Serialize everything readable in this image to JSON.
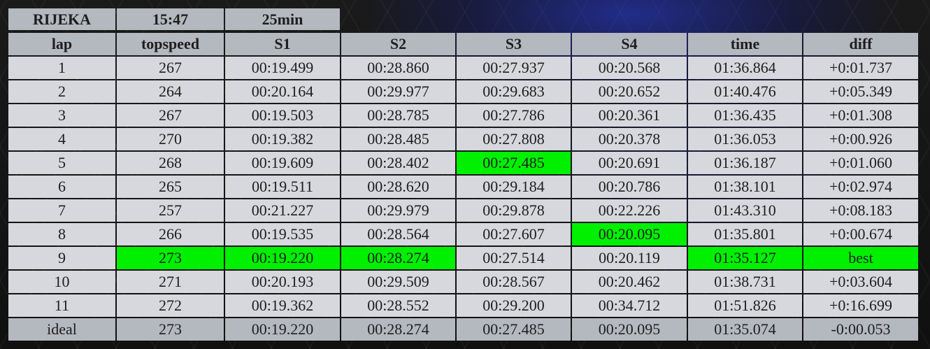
{
  "session": {
    "track": "RIJEKA",
    "time": "15:47",
    "duration": "25min"
  },
  "columns": [
    "lap",
    "topspeed",
    "S1",
    "S2",
    "S3",
    "S4",
    "time",
    "diff"
  ],
  "rows": [
    {
      "values": [
        "1",
        "267",
        "00:19.499",
        "00:28.860",
        "00:27.937",
        "00:20.568",
        "01:36.864",
        "+0:01.737"
      ],
      "best": []
    },
    {
      "values": [
        "2",
        "264",
        "00:20.164",
        "00:29.977",
        "00:29.683",
        "00:20.652",
        "01:40.476",
        "+0:05.349"
      ],
      "best": []
    },
    {
      "values": [
        "3",
        "267",
        "00:19.503",
        "00:28.785",
        "00:27.786",
        "00:20.361",
        "01:36.435",
        "+0:01.308"
      ],
      "best": []
    },
    {
      "values": [
        "4",
        "270",
        "00:19.382",
        "00:28.485",
        "00:27.808",
        "00:20.378",
        "01:36.053",
        "+0:00.926"
      ],
      "best": []
    },
    {
      "values": [
        "5",
        "268",
        "00:19.609",
        "00:28.402",
        "00:27.485",
        "00:20.691",
        "01:36.187",
        "+0:01.060"
      ],
      "best": [
        4
      ]
    },
    {
      "values": [
        "6",
        "265",
        "00:19.511",
        "00:28.620",
        "00:29.184",
        "00:20.786",
        "01:38.101",
        "+0:02.974"
      ],
      "best": []
    },
    {
      "values": [
        "7",
        "257",
        "00:21.227",
        "00:29.979",
        "00:29.878",
        "00:22.226",
        "01:43.310",
        "+0:08.183"
      ],
      "best": []
    },
    {
      "values": [
        "8",
        "266",
        "00:19.535",
        "00:28.564",
        "00:27.607",
        "00:20.095",
        "01:35.801",
        "+0:00.674"
      ],
      "best": [
        5
      ]
    },
    {
      "values": [
        "9",
        "273",
        "00:19.220",
        "00:28.274",
        "00:27.514",
        "00:20.119",
        "01:35.127",
        "best"
      ],
      "best": [
        1,
        2,
        3,
        6,
        7
      ]
    },
    {
      "values": [
        "10",
        "271",
        "00:20.193",
        "00:29.509",
        "00:28.567",
        "00:20.462",
        "01:38.731",
        "+0:03.604"
      ],
      "best": []
    },
    {
      "values": [
        "11",
        "272",
        "00:19.362",
        "00:28.552",
        "00:29.200",
        "00:34.712",
        "01:51.826",
        "+0:16.699"
      ],
      "best": []
    }
  ],
  "ideal": {
    "values": [
      "ideal",
      "273",
      "00:19.220",
      "00:28.274",
      "00:27.485",
      "00:20.095",
      "01:35.074",
      "-0:00.053"
    ]
  },
  "colors": {
    "best": "#00f000",
    "header": "#b4b8bf",
    "cell": "#d6d8dd"
  }
}
